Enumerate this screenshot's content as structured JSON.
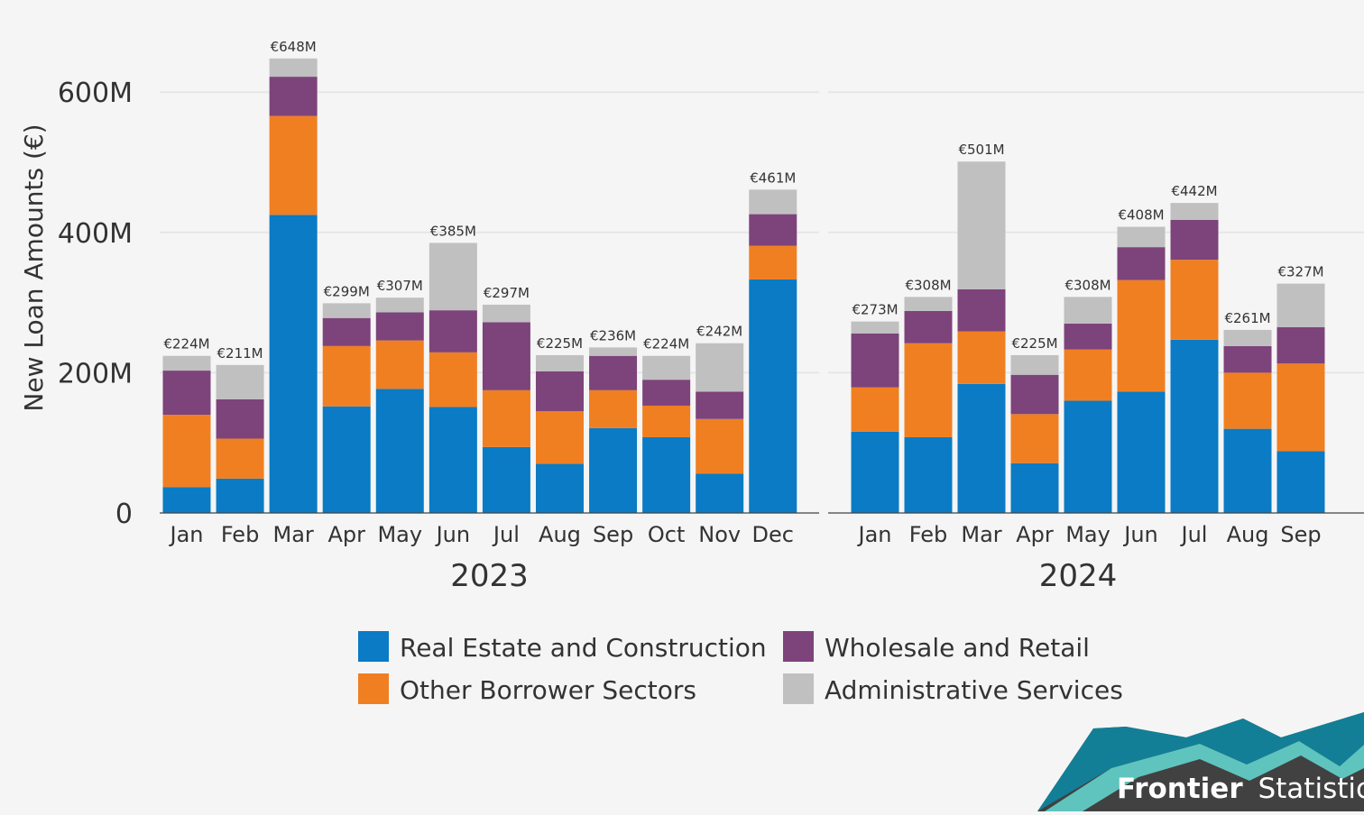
{
  "chart_data": {
    "type": "bar",
    "stacked": true,
    "ylabel": "New Loan Amounts (€)",
    "ylim": [
      0,
      650
    ],
    "y_ticks": [
      {
        "value": 0,
        "label": "0"
      },
      {
        "value": 200,
        "label": "200M"
      },
      {
        "value": 400,
        "label": "400M"
      },
      {
        "value": 600,
        "label": "600M"
      }
    ],
    "grid": true,
    "legend_position": "bottom",
    "series": [
      {
        "name": "Real Estate and Construction",
        "color": "#0a7bc4"
      },
      {
        "name": "Other Borrower Sectors",
        "color": "#f07f22"
      },
      {
        "name": "Wholesale and Retail",
        "color": "#7d437b"
      },
      {
        "name": "Administrative Services",
        "color": "#c0c0c0"
      }
    ],
    "panels": [
      {
        "facet_label": "2023",
        "categories": [
          "Jan",
          "Feb",
          "Mar",
          "Apr",
          "May",
          "Jun",
          "Jul",
          "Aug",
          "Sep",
          "Oct",
          "Nov",
          "Dec"
        ],
        "stack_values": {
          "Real Estate and Construction": [
            37,
            49,
            425,
            152,
            177,
            151,
            94,
            70,
            121,
            108,
            56,
            333
          ],
          "Other Borrower Sectors": [
            103,
            57,
            141,
            86,
            69,
            78,
            81,
            75,
            54,
            45,
            78,
            48
          ],
          "Wholesale and Retail": [
            63,
            56,
            56,
            40,
            40,
            60,
            97,
            57,
            49,
            37,
            39,
            45
          ],
          "Administrative Services": [
            21,
            49,
            26,
            21,
            21,
            96,
            25,
            23,
            12,
            34,
            69,
            35
          ]
        },
        "totals": [
          224,
          211,
          648,
          299,
          307,
          385,
          297,
          225,
          236,
          224,
          242,
          461
        ],
        "total_labels": [
          "€224M",
          "€211M",
          "€648M",
          "€299M",
          "€307M",
          "€385M",
          "€297M",
          "€225M",
          "€236M",
          "€224M",
          "€242M",
          "€461M"
        ]
      },
      {
        "facet_label": "2024",
        "categories": [
          "Jan",
          "Feb",
          "Mar",
          "Apr",
          "May",
          "Jun",
          "Jul",
          "Aug",
          "Sep"
        ],
        "stack_values": {
          "Real Estate and Construction": [
            116,
            108,
            184,
            71,
            160,
            173,
            247,
            120,
            88
          ],
          "Other Borrower Sectors": [
            63,
            134,
            75,
            70,
            73,
            159,
            114,
            80,
            125
          ],
          "Wholesale and Retail": [
            77,
            46,
            60,
            56,
            37,
            47,
            57,
            38,
            52
          ],
          "Administrative Services": [
            17,
            20,
            182,
            28,
            38,
            29,
            24,
            23,
            62
          ]
        },
        "totals": [
          273,
          308,
          501,
          225,
          308,
          408,
          442,
          261,
          327
        ],
        "total_labels": [
          "€273M",
          "€308M",
          "€501M",
          "€225M",
          "€308M",
          "€408M",
          "€442M",
          "€261M",
          "€327M"
        ]
      }
    ]
  },
  "branding": {
    "word_bold": "Frontier",
    "word_regular": "Statistics",
    "colors": {
      "dark": "#414141",
      "teal": "#127f96",
      "light_teal": "#5fc4be"
    }
  }
}
